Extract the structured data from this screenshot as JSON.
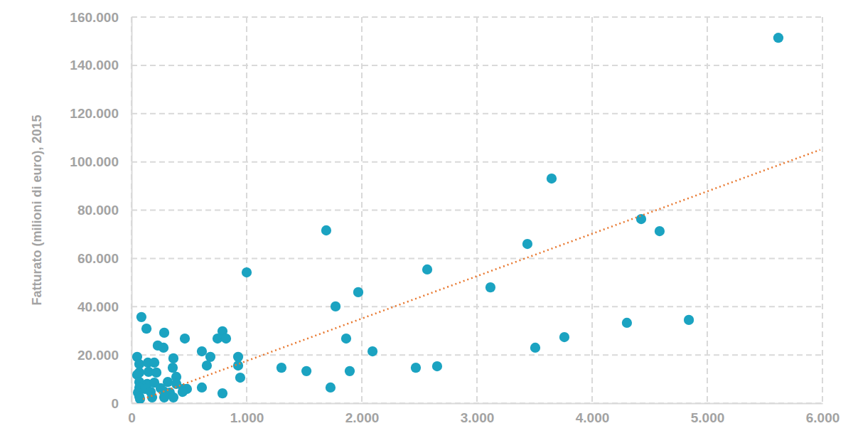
{
  "chart_data": {
    "type": "scatter",
    "y_label": "Fatturato (milioni di euro), 2015",
    "xlim": [
      0,
      6000
    ],
    "ylim": [
      0,
      160000
    ],
    "xticks": [
      0,
      {
        "value": 1000,
        "label": "1.000"
      },
      {
        "value": 2000,
        "label": "2.000"
      },
      {
        "value": 3000,
        "label": "3.000"
      },
      {
        "value": 4000,
        "label": "4.000"
      },
      {
        "value": 5000,
        "label": "5.000"
      },
      {
        "value": 6000,
        "label": "6.000"
      }
    ],
    "yticks": [
      0,
      {
        "value": 20000,
        "label": "20.000"
      },
      {
        "value": 40000,
        "label": "40.000"
      },
      {
        "value": 60000,
        "label": "60.000"
      },
      {
        "value": 80000,
        "label": "80.000"
      },
      {
        "value": 100000,
        "label": "100.000"
      },
      {
        "value": 120000,
        "label": "120.000"
      },
      {
        "value": 140000,
        "label": "140.000"
      },
      {
        "value": 160000,
        "label": "160.000"
      }
    ],
    "grid": true,
    "series": [
      {
        "type": "scatter",
        "color": "#1ba3c1",
        "marker": "circle",
        "x": [
          5617,
          3648,
          4426,
          4586,
          1691,
          3438,
          2568,
          1000,
          3117,
          1969,
          1772,
          86,
          4840,
          4302,
          130,
          284,
          790,
          3759,
          747,
          821,
          1864,
          463,
          228,
          278,
          3506,
          611,
          2093,
          685,
          49,
          926,
          364,
          68,
          142,
          198,
          926,
          654,
          358,
          1302,
          2469,
          2654,
          1519,
          1895,
          68,
          148,
          216,
          49,
          389,
          944,
          68,
          136,
          198,
          315,
          389,
          68,
          117,
          253,
          451,
          481,
          611,
          1728,
          56,
          167,
          278,
          333,
          790,
          68,
          179,
          284,
          364,
          74,
          444
        ],
        "values": [
          151400,
          93100,
          76300,
          71300,
          71600,
          66000,
          55400,
          54200,
          48000,
          46000,
          40100,
          35700,
          34500,
          33300,
          30900,
          29200,
          29800,
          27400,
          26800,
          26800,
          26800,
          26800,
          23900,
          23000,
          23000,
          21500,
          21500,
          19200,
          19200,
          19200,
          18600,
          16200,
          16800,
          16800,
          15600,
          15600,
          14700,
          14700,
          14700,
          15300,
          13300,
          13300,
          12700,
          13000,
          12700,
          11800,
          10900,
          10600,
          8800,
          8000,
          8500,
          8800,
          8000,
          6500,
          5900,
          6200,
          5900,
          5900,
          6500,
          6500,
          4400,
          4700,
          5000,
          4400,
          4100,
          2700,
          2400,
          2400,
          2400,
          1800,
          4700
        ]
      },
      {
        "type": "line",
        "color": "#e8772e",
        "line_style": "dotted",
        "x": [
          100,
          5980
        ],
        "values": [
          1700,
          105000
        ]
      }
    ]
  }
}
